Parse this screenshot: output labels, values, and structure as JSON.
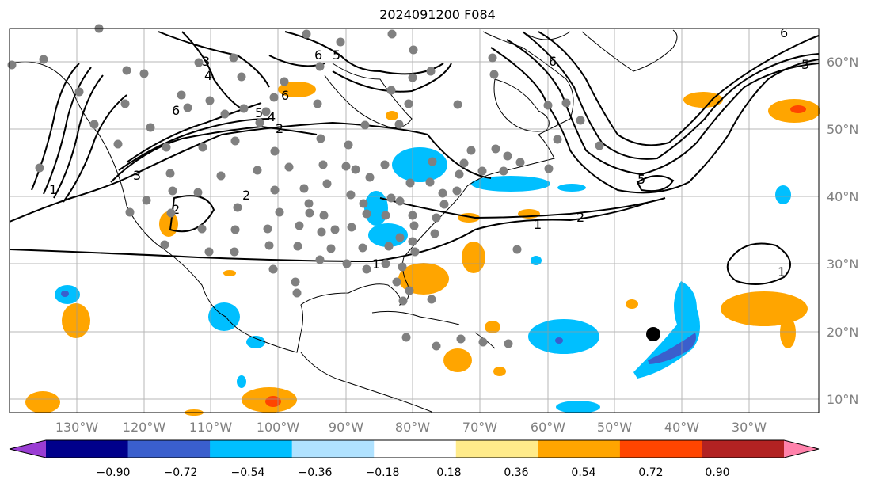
{
  "title": "2024091200 F084",
  "map": {
    "projection": "plate-carree",
    "lon_range": [
      -140,
      -19
    ],
    "lat_range": [
      8,
      65
    ],
    "lon_labels": [
      "130°W",
      "120°W",
      "110°W",
      "100°W",
      "90°W",
      "80°W",
      "70°W",
      "60°W",
      "50°W",
      "40°W",
      "30°W"
    ],
    "lat_labels": [
      "60°N",
      "50°N",
      "40°N",
      "30°N",
      "20°N",
      "10°N"
    ],
    "grid": true,
    "contour_labels": [
      "1",
      "2",
      "3",
      "4",
      "5",
      "6"
    ],
    "marker": {
      "symbol": "black-dot",
      "lon": -45,
      "lat": 19.5
    }
  },
  "colorbar": {
    "ticks": [
      "−0.90",
      "−0.72",
      "−0.54",
      "−0.36",
      "−0.18",
      "0.18",
      "0.36",
      "0.54",
      "0.72",
      "0.90"
    ],
    "colors": [
      "#9a3dd3",
      "#00008b",
      "#3a5fcd",
      "#00bfff",
      "#b0e2ff",
      "#ffffff",
      "#ffeb8a",
      "#ffa500",
      "#ff4500",
      "#b22222",
      "#ff82ab"
    ],
    "extend": "both"
  }
}
